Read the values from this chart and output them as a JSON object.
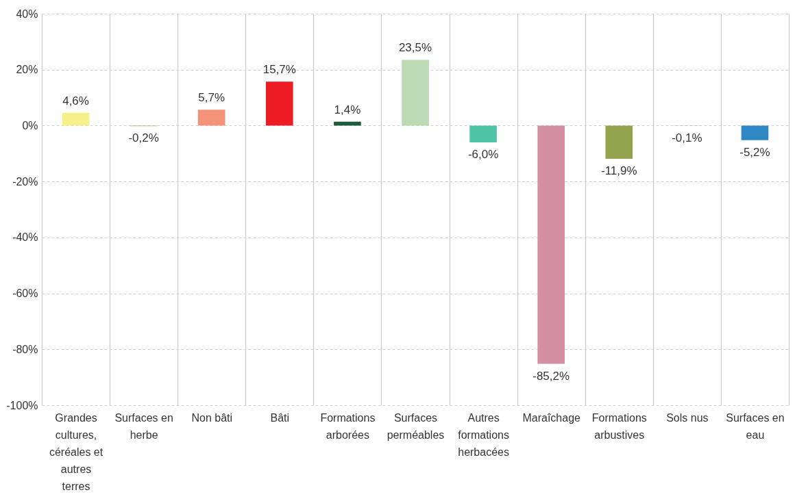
{
  "chart_data": {
    "type": "bar",
    "categories": [
      "Grandes cultures, céréales et autres terres",
      "Surfaces en herbe",
      "Non bâti",
      "Bâti",
      "Formations arborées",
      "Surfaces perméables",
      "Autres formations herbacées",
      "Maraîchage",
      "Formations arbustives",
      "Sols nus",
      "Surfaces en eau"
    ],
    "values": [
      4.6,
      -0.2,
      5.7,
      15.7,
      1.4,
      23.5,
      -6.0,
      -85.2,
      -11.9,
      -0.1,
      -5.2
    ],
    "colors": [
      "#f5f08a",
      "#8fbf5a",
      "#f4937a",
      "#ed1c24",
      "#1e5c3a",
      "#bcdab3",
      "#4fc3a5",
      "#d48fa3",
      "#94a44e",
      "#a0a0a0",
      "#2e87c3"
    ],
    "value_labels": [
      "4,6%",
      "-0,2%",
      "5,7%",
      "15,7%",
      "1,4%",
      "23,5%",
      "-6,0%",
      "-85,2%",
      "-11,9%",
      "-0,1%",
      "-5,2%"
    ],
    "ylim": [
      -100,
      40
    ],
    "yticks": [
      {
        "value": -100,
        "label": "-100%"
      },
      {
        "value": -80,
        "label": "-80%"
      },
      {
        "value": -60,
        "label": "-60%"
      },
      {
        "value": -40,
        "label": "-40%"
      },
      {
        "value": -20,
        "label": "-20%"
      },
      {
        "value": 0,
        "label": "0%"
      },
      {
        "value": 20,
        "label": "20%"
      },
      {
        "value": 40,
        "label": "40%"
      }
    ],
    "grid": true
  }
}
